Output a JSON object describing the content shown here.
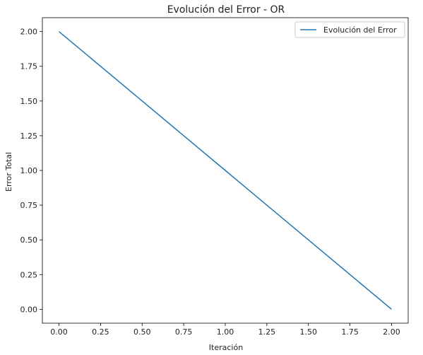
{
  "chart_data": {
    "type": "line",
    "title": "Evolución del Error - OR",
    "xlabel": "Iteración",
    "ylabel": "Error Total",
    "xlim": [
      -0.1,
      2.1
    ],
    "ylim": [
      -0.1,
      2.1
    ],
    "xticks": [
      0.0,
      0.25,
      0.5,
      0.75,
      1.0,
      1.25,
      1.5,
      1.75,
      2.0
    ],
    "xtick_labels": [
      "0.00",
      "0.25",
      "0.50",
      "0.75",
      "1.00",
      "1.25",
      "1.50",
      "1.75",
      "2.00"
    ],
    "yticks": [
      0.0,
      0.25,
      0.5,
      0.75,
      1.0,
      1.25,
      1.5,
      1.75,
      2.0
    ],
    "ytick_labels": [
      "0.00",
      "0.25",
      "0.50",
      "0.75",
      "1.00",
      "1.25",
      "1.50",
      "1.75",
      "2.00"
    ],
    "grid": false,
    "legend_position": "top-right",
    "series": [
      {
        "name": "Evolución del Error",
        "color": "#1f77b4",
        "x": [
          0,
          1,
          2
        ],
        "y": [
          2,
          1,
          0
        ]
      }
    ]
  }
}
